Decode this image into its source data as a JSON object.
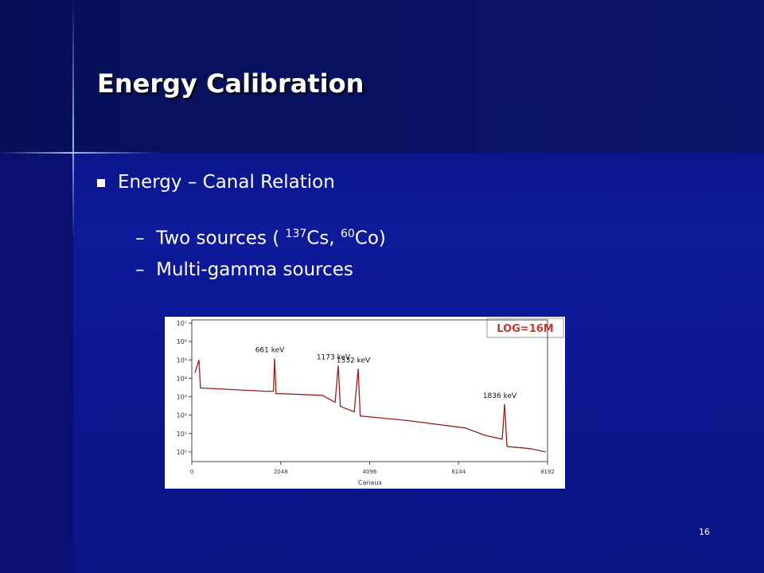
{
  "slide": {
    "title": "Energy Calibration",
    "bullet": "Energy – Canal Relation",
    "subitems": [
      [
        "Two sources ( ",
        "137",
        "Cs, ",
        "60",
        "Co)"
      ],
      [
        "Multi-gamma sources"
      ]
    ],
    "page_number": "16"
  },
  "chart_data": {
    "type": "line",
    "corner_label": "LOG=16M",
    "x_label": "Canaux",
    "log_scale": true,
    "color": "#9b1c1c",
    "xlim": [
      0,
      8192
    ],
    "xticks": [
      0,
      2048,
      4096,
      6144,
      8192
    ],
    "ylim": [
      0.3,
      15000000
    ],
    "yticks": [
      {
        "value": 1,
        "label": "10⁰"
      },
      {
        "value": 10,
        "label": "10¹"
      },
      {
        "value": 100,
        "label": "10²"
      },
      {
        "value": 1000,
        "label": "10³"
      },
      {
        "value": 10000,
        "label": "10⁴"
      },
      {
        "value": 100000,
        "label": "10⁵"
      },
      {
        "value": 1000000,
        "label": "10⁶"
      },
      {
        "value": 10000000,
        "label": "10⁷"
      }
    ],
    "annotations": [
      {
        "text": "661 keV",
        "x": 1906
      },
      {
        "text": "1173 keV",
        "x": 3372
      },
      {
        "text": "1332 keV",
        "x": 3830
      },
      {
        "text": "1836 keV",
        "x": 7202
      }
    ],
    "x": [
      73,
      165,
      200,
      1700,
      1880,
      1906,
      1940,
      3000,
      3300,
      3372,
      3420,
      3740,
      3830,
      3880,
      5000,
      6300,
      6750,
      7150,
      7202,
      7260,
      7800,
      8150
    ],
    "values": [
      20000,
      100000,
      3000,
      2000,
      2000,
      120000,
      1500,
      1200,
      500,
      50000,
      300,
      150,
      33000,
      90,
      50,
      20,
      8,
      5,
      400,
      2,
      1.5,
      1
    ]
  }
}
